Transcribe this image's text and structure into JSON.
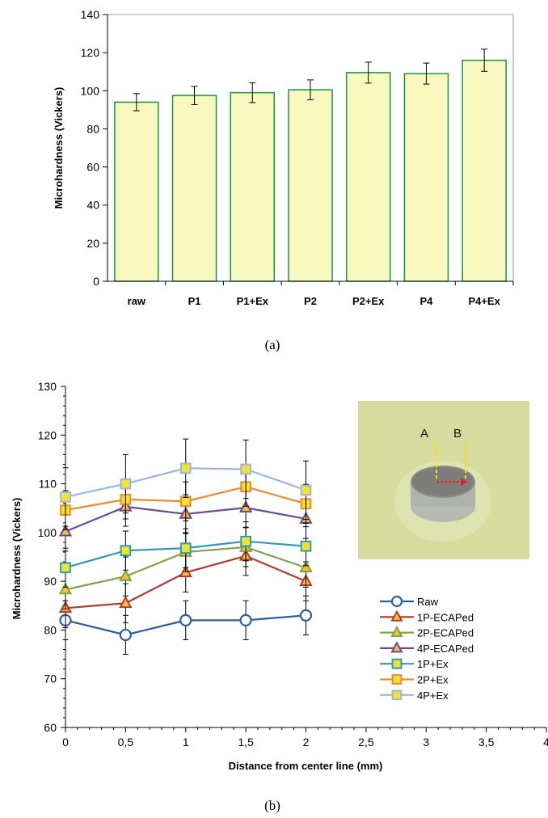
{
  "chart_data": [
    {
      "type": "bar",
      "caption": "(a)",
      "ylabel": "Microhardness (Vickers)",
      "xlabel": "",
      "ylim": [
        0,
        140
      ],
      "yticks": [
        0,
        20,
        40,
        60,
        80,
        100,
        120,
        140
      ],
      "categories": [
        "raw",
        "P1",
        "P1+Ex",
        "P2",
        "P2+Ex",
        "P4",
        "P4+Ex"
      ],
      "values": [
        94,
        97.5,
        99,
        100.5,
        109.5,
        109,
        116
      ],
      "errors": [
        4.5,
        4.8,
        5.2,
        5.2,
        5.5,
        5.5,
        5.8
      ],
      "colors": {
        "fill": "#f8f8bf",
        "stroke": "#1a9641"
      },
      "grid": false
    },
    {
      "type": "line",
      "caption": "(b)",
      "xlabel": "Distance from center line (mm)",
      "ylabel": "Microhardness (Vickers)",
      "xlim": [
        0,
        4
      ],
      "ylim": [
        60,
        130
      ],
      "xticks": [
        "0",
        "0,5",
        "1",
        "1,5",
        "2",
        "2,5",
        "3",
        "3,5",
        "4"
      ],
      "yticks": [
        60,
        70,
        80,
        90,
        100,
        110,
        120,
        130
      ],
      "x": [
        0,
        0.5,
        1,
        1.5,
        2
      ],
      "legend_position": "right",
      "series": [
        {
          "name": "Raw",
          "values": [
            82,
            79,
            82,
            82,
            83
          ],
          "error": [
            4,
            4,
            4,
            4,
            4
          ],
          "marker": "circle",
          "line": "#2e5f9e",
          "fill": "#ffffff"
        },
        {
          "name": "1P-ECAPed",
          "values": [
            84.5,
            85.5,
            91.8,
            95.2,
            90
          ],
          "error": [
            4,
            4,
            4,
            4,
            4
          ],
          "marker": "triangle",
          "line": "#b03a33",
          "fill": "#f2c12e"
        },
        {
          "name": "2P-ECAPed",
          "values": [
            88.3,
            91,
            96,
            97,
            92.8
          ],
          "error": [
            4,
            4,
            4,
            4,
            4
          ],
          "marker": "triangle",
          "line": "#7ea34a",
          "fill": "#f2c12e"
        },
        {
          "name": "4P-ECAPed",
          "values": [
            100.2,
            105.3,
            103.8,
            105.1,
            102.8
          ],
          "error": [
            4,
            4,
            4,
            4,
            4
          ],
          "marker": "triangle",
          "line": "#6a4a93",
          "fill": "#f2c12e"
        },
        {
          "name": "1P+Ex",
          "values": [
            92.8,
            96.3,
            96.8,
            98.2,
            97.2
          ],
          "error": [
            4,
            4,
            4,
            4,
            4
          ],
          "marker": "square",
          "line": "#2f9bb5",
          "fill": "#f2e233"
        },
        {
          "name": "2P+Ex",
          "values": [
            104.6,
            106.8,
            106.4,
            109.4,
            105.9
          ],
          "error": [
            4,
            4,
            4,
            4,
            4
          ],
          "marker": "square",
          "line": "#ee8a2e",
          "fill": "#f2e233"
        },
        {
          "name": "4P+Ex",
          "values": [
            107.3,
            110,
            113.2,
            113,
            108.7
          ],
          "error": [
            6,
            6,
            6,
            6,
            6
          ],
          "marker": "square",
          "line": "#9db6e0",
          "fill": "#f2e233"
        }
      ],
      "inset_photo": {
        "labels": [
          "A",
          "B"
        ]
      }
    }
  ]
}
